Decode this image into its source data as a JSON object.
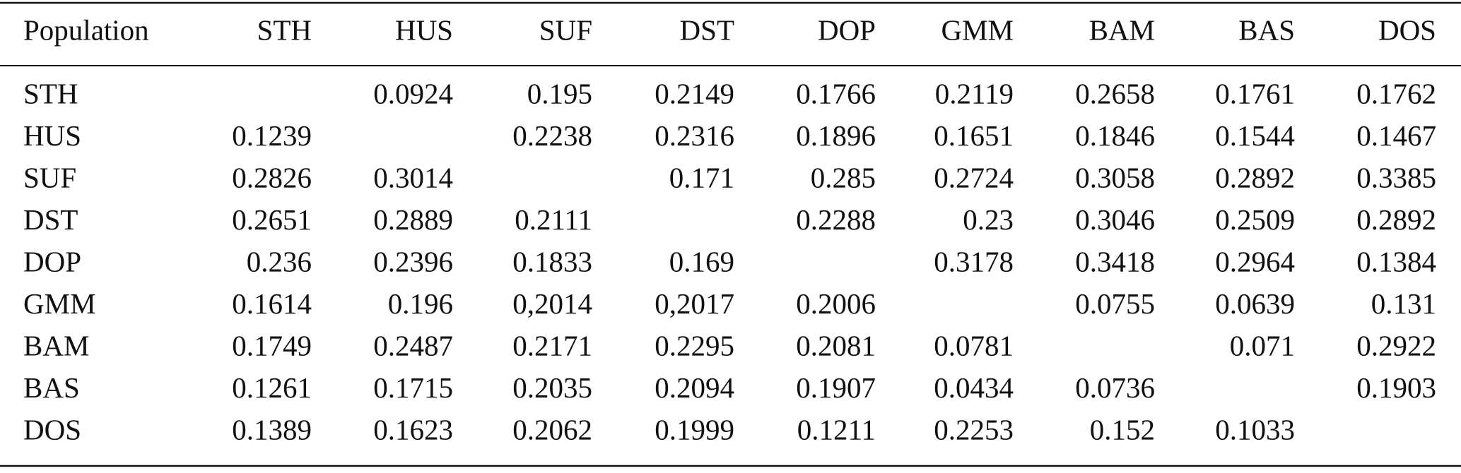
{
  "table": {
    "header": [
      "Population",
      "STH",
      "HUS",
      "SUF",
      "DST",
      "DOP",
      "GMM",
      "BAM",
      "BAS",
      "DOS"
    ],
    "rows": [
      [
        "STH",
        null,
        "0.0924",
        "0.195",
        "0.2149",
        "0.1766",
        "0.2119",
        "0.2658",
        "0.1761",
        "0.1762"
      ],
      [
        "HUS",
        "0.1239",
        null,
        "0.2238",
        "0.2316",
        "0.1896",
        "0.1651",
        "0.1846",
        "0.1544",
        "0.1467"
      ],
      [
        "SUF",
        "0.2826",
        "0.3014",
        null,
        "0.171",
        "0.285",
        "0.2724",
        "0.3058",
        "0.2892",
        "0.3385"
      ],
      [
        "DST",
        "0.2651",
        "0.2889",
        "0.2111",
        null,
        "0.2288",
        "0.23",
        "0.3046",
        "0.2509",
        "0.2892"
      ],
      [
        "DOP",
        "0.236",
        "0.2396",
        "0.1833",
        "0.169",
        null,
        "0.3178",
        "0.3418",
        "0.2964",
        "0.1384"
      ],
      [
        "GMM",
        "0.1614",
        "0.196",
        "0,2014",
        "0,2017",
        "0.2006",
        null,
        "0.0755",
        "0.0639",
        "0.131"
      ],
      [
        "BAM",
        "0.1749",
        "0.2487",
        "0.2171",
        "0.2295",
        "0.2081",
        "0.0781",
        null,
        "0.071",
        "0.2922"
      ],
      [
        "BAS",
        "0.1261",
        "0.1715",
        "0.2035",
        "0.2094",
        "0.1907",
        "0.0434",
        "0.0736",
        null,
        "0.1903"
      ],
      [
        "DOS",
        "0.1389",
        "0.1623",
        "0.2062",
        "0.1999",
        "0.1211",
        "0.2253",
        "0.152",
        "0.1033",
        null
      ]
    ]
  }
}
